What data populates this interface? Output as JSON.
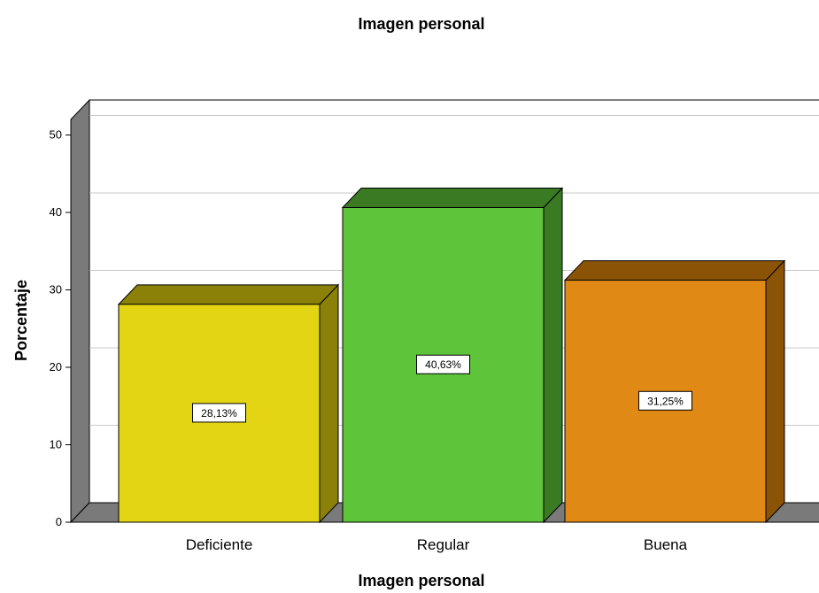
{
  "chart_data": {
    "type": "bar",
    "title": "Imagen personal",
    "xlabel": "Imagen personal",
    "ylabel": "Porcentaje",
    "categories": [
      "Deficiente",
      "Regular",
      "Buena"
    ],
    "values": [
      28.13,
      40.63,
      31.25
    ],
    "data_labels": [
      "28,13%",
      "40,63%",
      "31,25%"
    ],
    "yticks": [
      0,
      10,
      20,
      30,
      40,
      50
    ],
    "ylim": [
      0,
      52
    ],
    "grid": true,
    "legend": "none",
    "style": "3d",
    "colors": {
      "front": [
        "#e3d513",
        "#5ec43a",
        "#e08915"
      ],
      "side": [
        "#8b8008",
        "#3a7a23",
        "#8a5306"
      ],
      "top": [
        "#8b8008",
        "#3a7a23",
        "#8a5306"
      ],
      "wall": "#7a7a7a",
      "gridline": "#c8c8c8"
    }
  }
}
